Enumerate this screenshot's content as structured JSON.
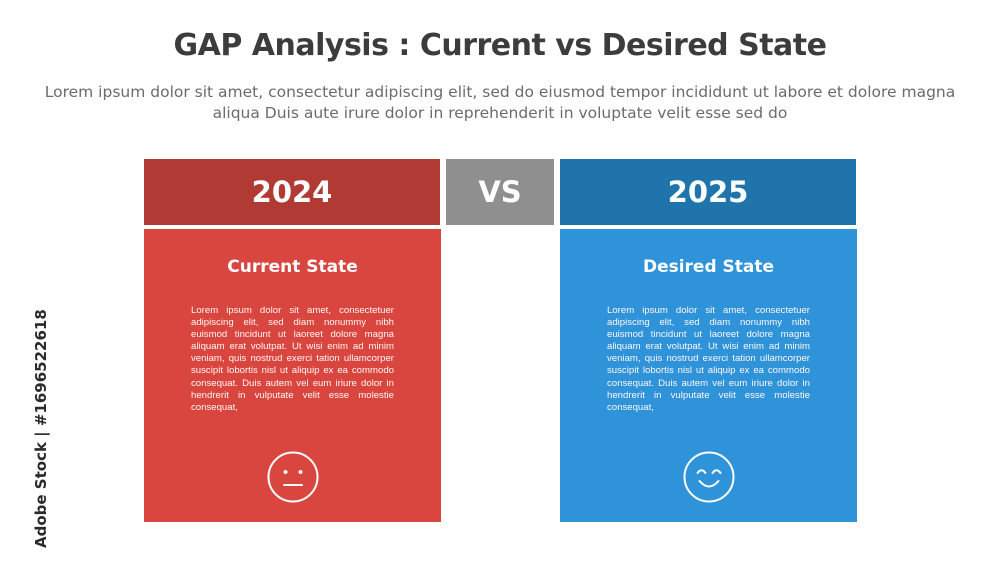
{
  "header": {
    "title": "GAP Analysis : Current vs Desired State",
    "subtitle": "Lorem ipsum dolor sit amet, consectetur adipiscing elit, sed do eiusmod tempor incididunt ut labore et dolore magna aliqua Duis aute irure dolor in reprehenderit in voluptate velit esse sed do"
  },
  "left": {
    "year": "2024",
    "title": "Current State",
    "body": "Lorem ipsum dolor sit amet, consectetuer adipiscing elit, sed diam nonummy nibh euismod tincidunt ut laoreet dolore magna aliquam erat volutpat. Ut wisi enim ad minim veniam, quis nostrud exerci tation ullamcorper suscipit lobortis nisl ut aliquip ex ea commodo consequat. Duis autem vel eum iriure dolor in hendrerit in vulputate velit esse molestie consequat,",
    "icon": "neutral-face-icon",
    "header_color": "#b13a35",
    "card_color": "#d9463f"
  },
  "vs": {
    "label": "VS",
    "color": "#8f8f8f"
  },
  "right": {
    "year": "2025",
    "title": "Desired State",
    "body": "Lorem ipsum dolor sit amet, consectetuer adipiscing elit, sed diam nonummy nibh euismod tincidunt ut laoreet dolore magna aliquam erat volutpat. Ut wisi enim ad minim veniam, quis nostrud exerci tation ullamcorper suscipit lobortis nisl ut aliquip ex ea commodo consequat. Duis autem vel eum iriure dolor in hendrerit in vulputate velit esse molestie consequat,",
    "icon": "smiling-face-icon",
    "header_color": "#1f74ac",
    "card_color": "#2e93d9"
  },
  "watermark": {
    "text": "Adobe Stock | #1696522618"
  }
}
